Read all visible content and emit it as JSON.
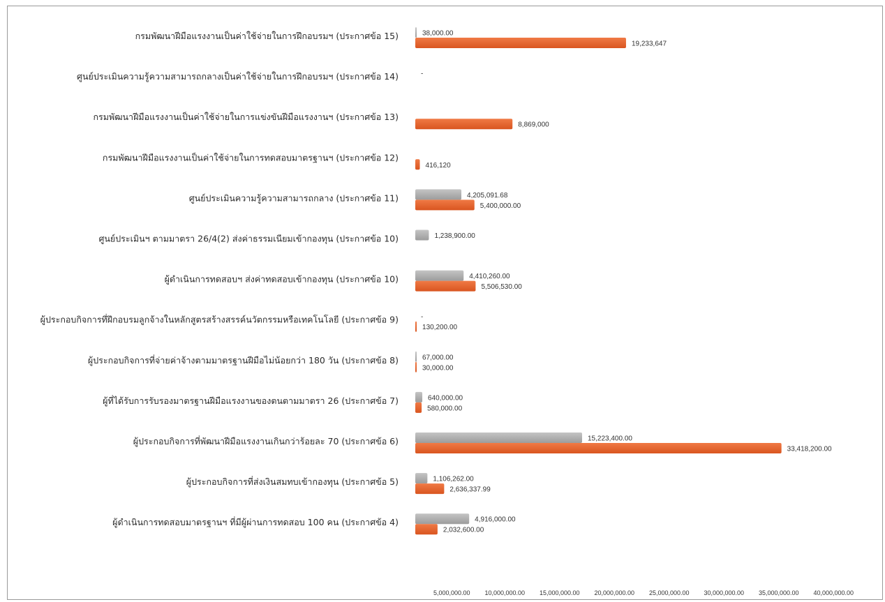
{
  "chart_data": {
    "type": "bar",
    "orientation": "horizontal",
    "title": "",
    "xlabel": "",
    "ylabel": "",
    "xlim": [
      0,
      40000000
    ],
    "grid": false,
    "legend": "none",
    "categories": [
      "กรมพัฒนาฝีมือแรงงานเป็นค่าใช้จ่ายในการฝึกอบรมฯ (ประกาศข้อ 15)",
      "ศูนย์ประเมินความรู้ความสามารถกลางเป็นค่าใช้จ่ายในการฝึกอบรมฯ (ประกาศข้อ 14)",
      "กรมพัฒนาฝีมือแรงงานเป็นค่าใช้จ่ายในการแข่งขันฝีมือแรงงานฯ (ประกาศข้อ 13)",
      "กรมพัฒนาฝีมือแรงงานเป็นค่าใช้จ่ายในการทดสอบมาตรฐานฯ (ประกาศข้อ 12)",
      "ศูนย์ประเมินความรู้ความสามารถกลาง (ประกาศข้อ 11)",
      "ศูนย์ประเมินฯ ตามมาตรา 26/4(2) ส่งค่าธรรมเนียมเข้ากองทุน (ประกาศข้อ 10)",
      "ผู้ดำเนินการทดสอบฯ ส่งค่าทดสอบเข้ากองทุน (ประกาศข้อ 10)",
      "ผู้ประกอบกิจการที่ฝึกอบรมลูกจ้างในหลักสูตรสร้างสรรค์นวัตกรรมหรือเทคโนโลยี (ประกาศข้อ 9)",
      "ผู้ประกอบกิจการที่จ่ายค่าจ้างตามมาตรฐานฝีมือไม่น้อยกว่า 180 วัน (ประกาศข้อ 8)",
      "ผู้ที่ได้รับการรับรองมาตรฐานฝีมือแรงงานของตนตามมาตรา 26 (ประกาศข้อ 7)",
      "ผู้ประกอบกิจการที่พัฒนาฝีมือแรงงานเกินกว่าร้อยละ 70 (ประกาศข้อ 6)",
      "ผู้ประกอบกิจการที่ส่งเงินสมทบเข้ากองทุน (ประกาศข้อ 5)",
      "ผู้ดำเนินการทดสอบมาตรฐานฯ ที่มีผู้ผ่านการทดสอบ 100 คน (ประกาศข้อ 4)"
    ],
    "series": [
      {
        "color": "#a9a9a9",
        "values": [
          38000,
          null,
          null,
          null,
          4205091.68,
          1238900,
          4410260,
          null,
          67000,
          640000,
          15223400,
          1106262,
          4916000
        ],
        "labels": [
          "38,000.00",
          "-",
          "",
          "",
          "4,205,091.68",
          "1,238,900.00",
          "4,410,260.00",
          "-",
          "67,000.00",
          "640,000.00",
          "15,223,400.00",
          "1,106,262.00",
          "4,916,000.00"
        ]
      },
      {
        "color": "#e8652f",
        "values": [
          19233647,
          null,
          8869000,
          416120,
          5400000,
          null,
          5506530,
          130200,
          30000,
          580000,
          33418200,
          2636337.99,
          2032600
        ],
        "labels": [
          "19,233,647",
          "",
          "8,869,000",
          "416,120",
          "5,400,000.00",
          "",
          "5,506,530.00",
          "130,200.00",
          "30,000.00",
          "580,000.00",
          "33,418,200.00",
          "2,636,337.99",
          "2,032,600.00"
        ]
      }
    ],
    "ticks": [
      5000000,
      10000000,
      15000000,
      20000000,
      25000000,
      30000000,
      35000000,
      40000000
    ],
    "tick_labels": [
      "5,000,000.00",
      "10,000,000.00",
      "15,000,000.00",
      "20,000,000.00",
      "25,000,000.00",
      "30,000,000.00",
      "35,000,000.00",
      "40,000,000.00"
    ]
  }
}
